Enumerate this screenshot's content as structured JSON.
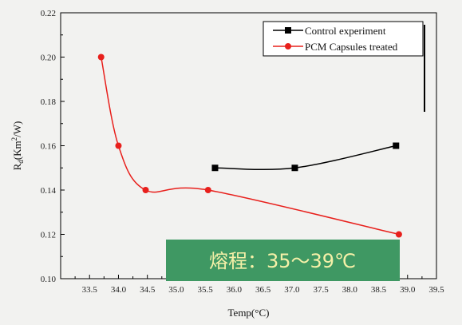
{
  "chart_data": {
    "type": "scatter",
    "xlabel": "Temp(°C)",
    "ylabel": "Rd(Km2/W)",
    "ylabel_parts": {
      "main": "R",
      "sub": "d",
      "unit_open": "(Km",
      "sup": "2",
      "unit_close": "/W)"
    },
    "xlim": [
      33.0,
      39.5
    ],
    "ylim": [
      0.1,
      0.22
    ],
    "x_ticks": [
      "33.5",
      "34.0",
      "34.5",
      "35.0",
      "35.5",
      "36.0",
      "36.5",
      "37.0",
      "37.5",
      "38.0",
      "38.5",
      "39.0",
      "39.5"
    ],
    "x_tick_values": [
      33.5,
      34.0,
      34.5,
      35.0,
      35.5,
      36.0,
      36.5,
      37.0,
      37.5,
      38.0,
      38.5,
      39.0,
      39.5
    ],
    "y_ticks": [
      "0.10",
      "0.12",
      "0.14",
      "0.16",
      "0.18",
      "0.20",
      "0.22"
    ],
    "y_tick_values": [
      0.1,
      0.12,
      0.14,
      0.16,
      0.18,
      0.2,
      0.22
    ],
    "series": [
      {
        "name": "Control experiment",
        "marker": "square",
        "color": "#000000",
        "points": [
          [
            35.67,
            0.15
          ],
          [
            37.05,
            0.15
          ],
          [
            38.8,
            0.16
          ]
        ]
      },
      {
        "name": "PCM Capsules treated",
        "marker": "circle",
        "color": "#e8201c",
        "points": [
          [
            33.7,
            0.2
          ],
          [
            34.0,
            0.16
          ],
          [
            34.47,
            0.14
          ],
          [
            35.55,
            0.14
          ],
          [
            38.85,
            0.12
          ]
        ]
      }
    ],
    "legend": "top-right",
    "grid": false,
    "annotation": "熔程：35～39℃",
    "annotation_bg": "#3f9863"
  }
}
